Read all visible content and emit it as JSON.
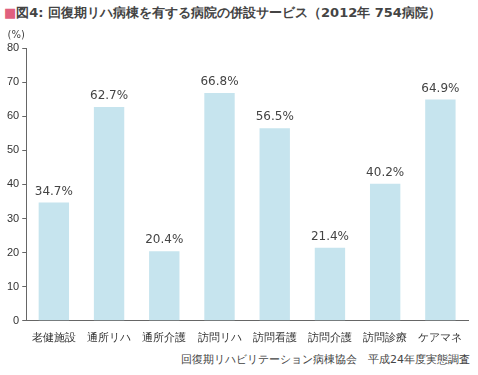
{
  "chart_data": {
    "type": "bar",
    "title": "■図4: 回復期リハ病棟を有する病院の併設サービス（2012年 754病院）",
    "y_label": "(%)",
    "categories": [
      "老健施設",
      "通所リハ",
      "通所介護",
      "訪問リハ",
      "訪問看護",
      "訪問介護",
      "訪問診療",
      "ケアマネ"
    ],
    "values": [
      34.7,
      62.7,
      20.4,
      66.8,
      56.5,
      21.4,
      40.2,
      64.9
    ],
    "value_labels": [
      "34.7%",
      "62.7%",
      "20.4%",
      "66.8%",
      "56.5%",
      "21.4%",
      "40.2%",
      "64.9%"
    ],
    "data_labels": true,
    "color": "#c6e4ee",
    "ylim": [
      0,
      80
    ],
    "yticks": [
      0,
      10,
      20,
      30,
      40,
      50,
      60,
      70,
      80
    ],
    "grid": false,
    "annotations": [
      "回復期リハビリテーション病棟協会　平成24年度実態調査"
    ]
  }
}
